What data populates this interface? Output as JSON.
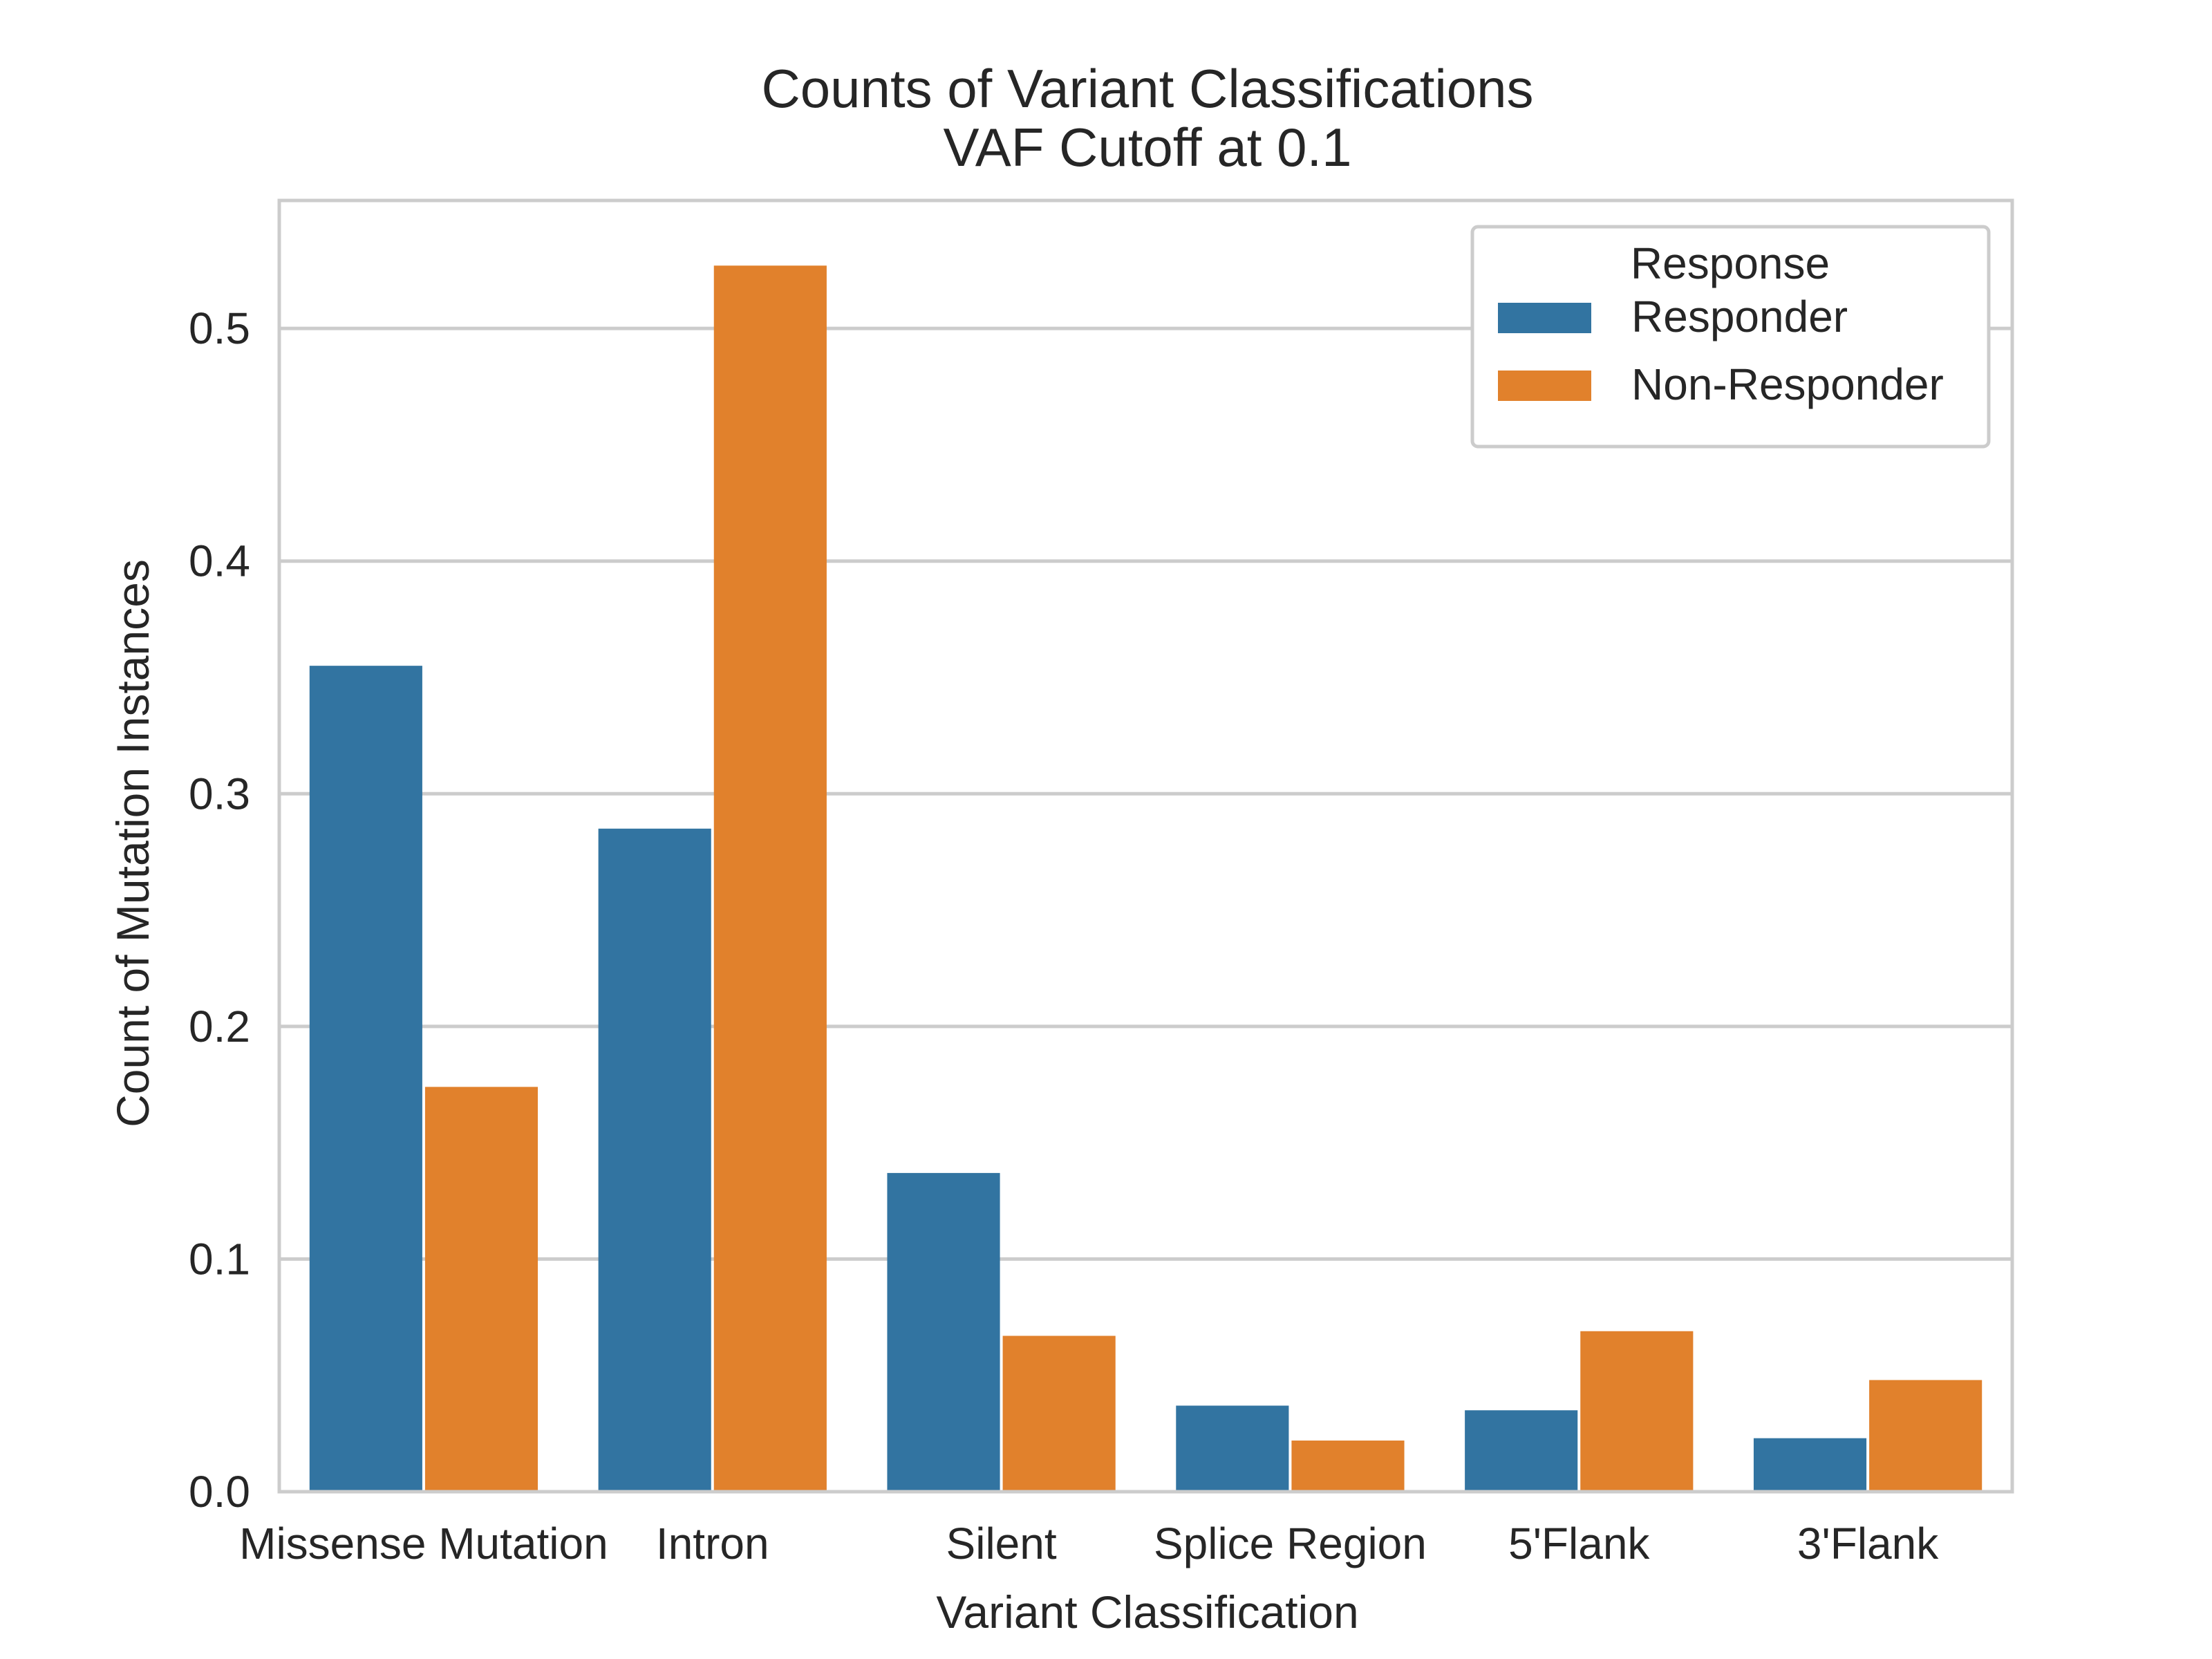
{
  "chart_data": {
    "type": "bar",
    "title": "Counts of Variant Classifications",
    "subtitle": "VAF Cutoff at 0.1",
    "xlabel": "Variant Classification",
    "ylabel": "Count of Mutation Instances",
    "categories": [
      "Missense Mutation",
      "Intron",
      "Silent",
      "Splice Region",
      "5'Flank",
      "3'Flank"
    ],
    "series": [
      {
        "name": "Responder",
        "color": "#3274a1",
        "values": [
          0.355,
          0.285,
          0.137,
          0.037,
          0.035,
          0.023
        ]
      },
      {
        "name": "Non-Responder",
        "color": "#e1812c",
        "values": [
          0.174,
          0.527,
          0.067,
          0.022,
          0.069,
          0.048
        ]
      }
    ],
    "ylim": [
      0,
      0.555
    ],
    "yticks": [
      0.0,
      0.1,
      0.2,
      0.3,
      0.4,
      0.5
    ],
    "ytick_labels": [
      "0.0",
      "0.1",
      "0.2",
      "0.3",
      "0.4",
      "0.5"
    ],
    "grid": true,
    "legend": {
      "title": "Response",
      "position": "top-right"
    }
  }
}
